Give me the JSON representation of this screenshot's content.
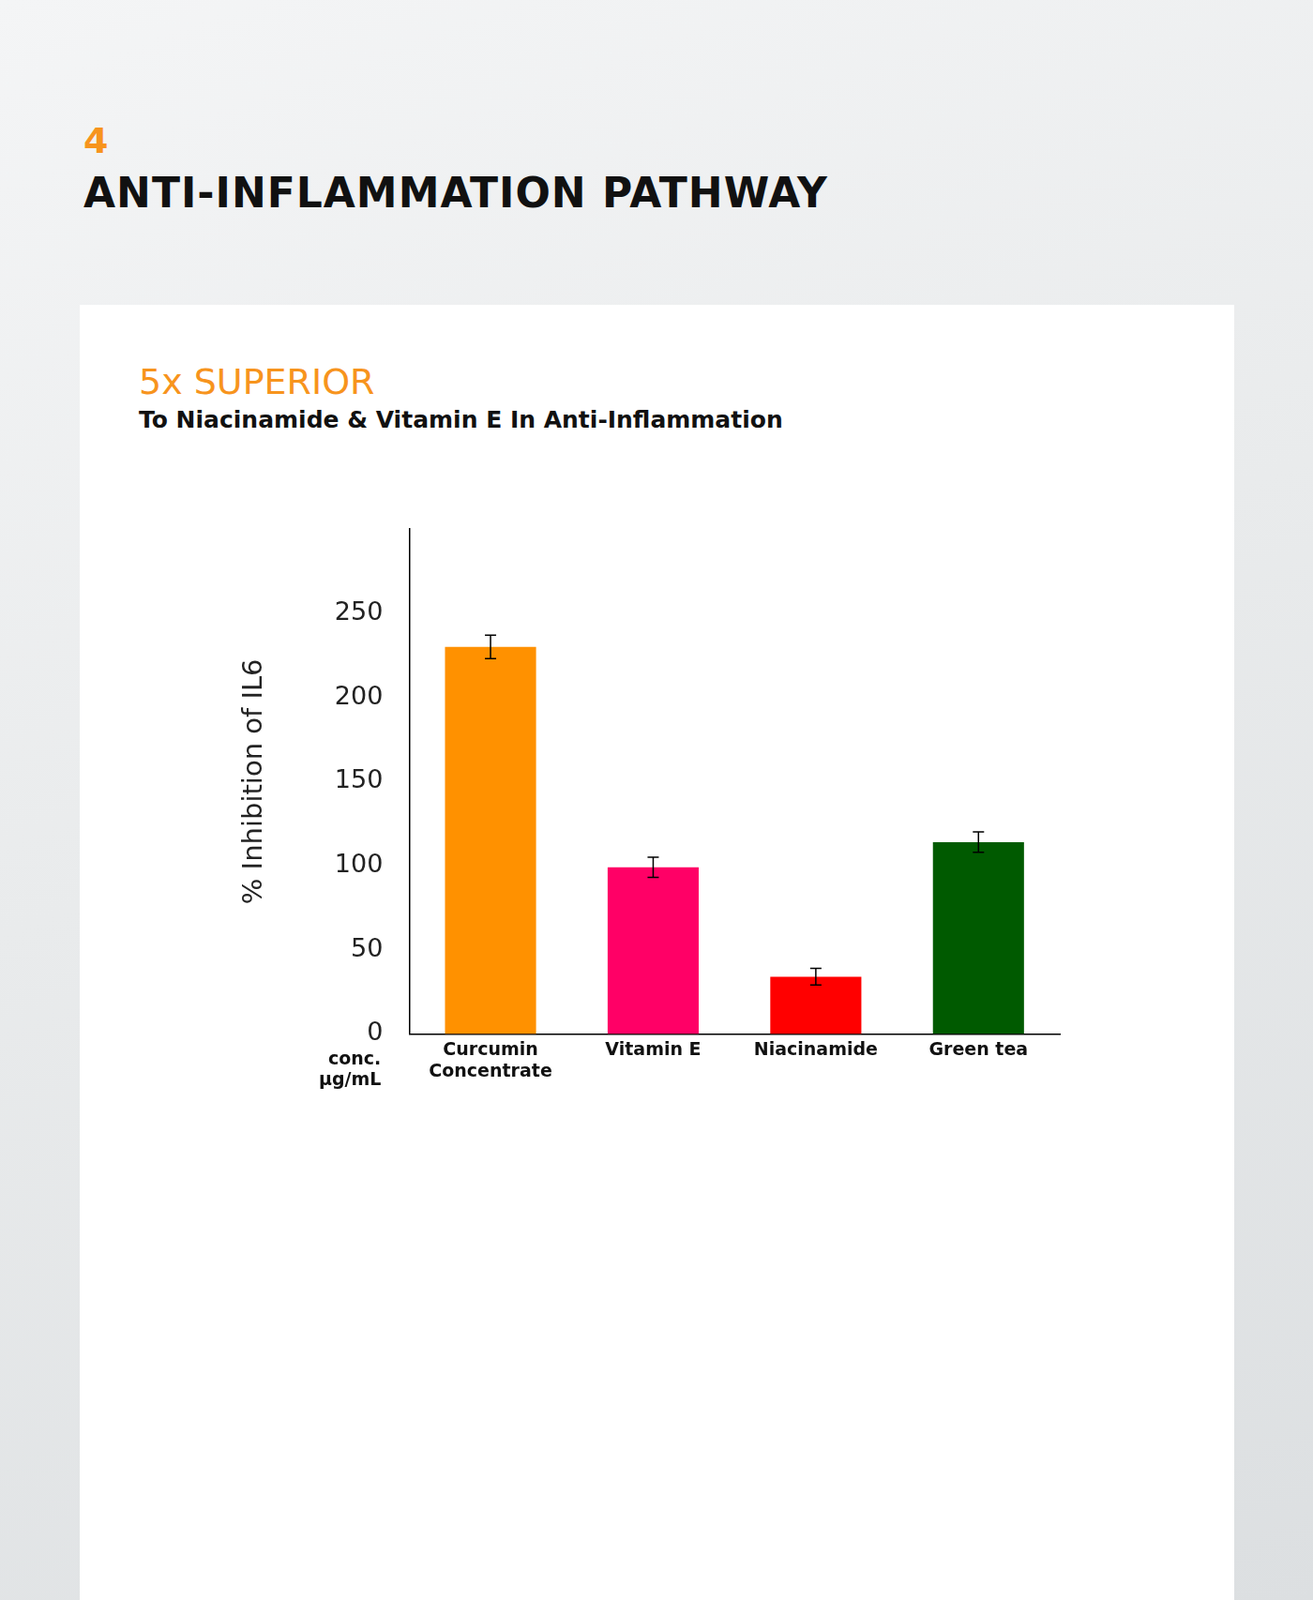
{
  "section_number": "4",
  "heading": "ANTI-INFLAMMATION PATHWAY",
  "chart_data": {
    "type": "bar",
    "title": "5x SUPERIOR",
    "subtitle": "To Niacinamide & Vitamin E In Anti-Inflammation",
    "y_label": "% Inhibition of IL6",
    "x_label": "conc. µg/mL",
    "categories": [
      "Curcumin Concentrate",
      "Vitamin E",
      "Niacinamide",
      "Green tea"
    ],
    "values": [
      230,
      99,
      34,
      114
    ],
    "errors": [
      7,
      6,
      5,
      6
    ],
    "colors": [
      "#ff9100",
      "#ff0066",
      "#ff0000",
      "#005a00"
    ],
    "ylim": [
      0,
      300
    ],
    "yticks": [
      0,
      50,
      100,
      150,
      200,
      250
    ],
    "grid": false
  }
}
